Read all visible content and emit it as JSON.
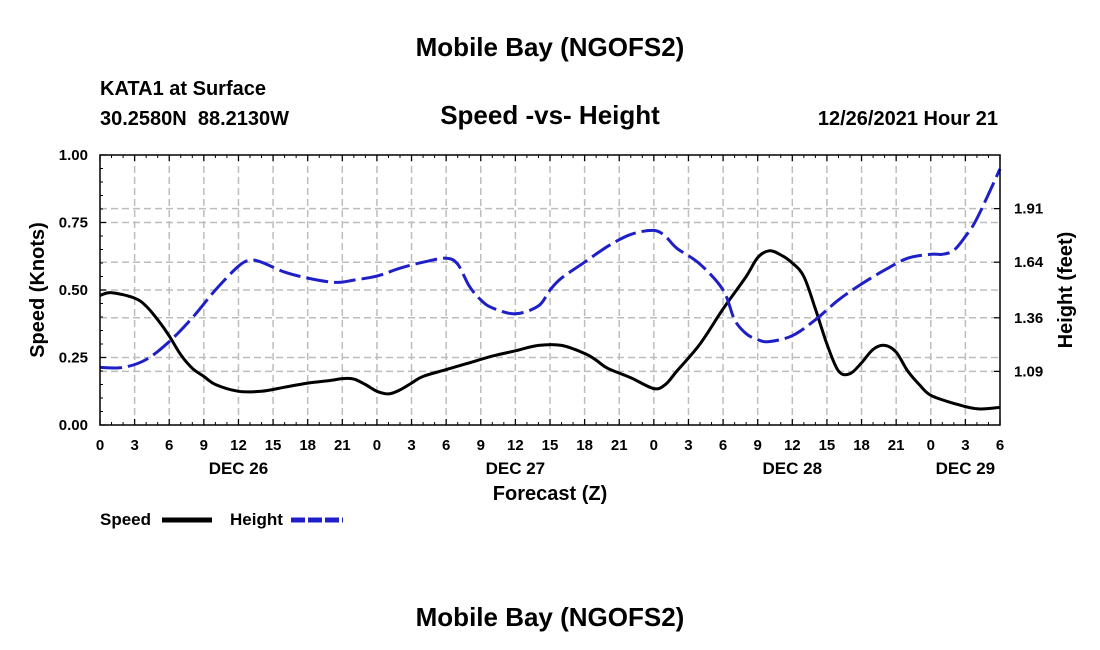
{
  "page": {
    "title_top": "Mobile Bay (NGOFS2)",
    "station": "KATA1 at Surface",
    "coords": "30.2580N  88.2130W",
    "subtitle": "Speed -vs- Height",
    "datetime": "12/26/2021 Hour 21",
    "title_bottom": "Mobile Bay (NGOFS2)"
  },
  "chart_data": {
    "type": "line",
    "title": "Speed -vs- Height",
    "xlabel": "Forecast (Z)",
    "ylabel": "Speed (Knots)",
    "y2label": "Height (feet)",
    "x_unit": "hours since DEC 26 00Z",
    "xlim": [
      0,
      78
    ],
    "ylim": [
      0,
      1.0
    ],
    "y2lim": [
      0.82,
      2.18
    ],
    "grid": true,
    "legend_position": "bottom-left",
    "x_ticks": [
      0,
      3,
      6,
      9,
      12,
      15,
      18,
      21,
      24,
      27,
      30,
      33,
      36,
      39,
      42,
      45,
      48,
      51,
      54,
      57,
      60,
      63,
      66,
      69,
      72,
      75,
      78
    ],
    "x_tick_labels": [
      "0",
      "3",
      "6",
      "9",
      "12",
      "15",
      "18",
      "21",
      "0",
      "3",
      "6",
      "9",
      "12",
      "15",
      "18",
      "21",
      "0",
      "3",
      "6",
      "9",
      "12",
      "15",
      "18",
      "21",
      "0",
      "3",
      "6"
    ],
    "date_labels": [
      {
        "x": 12,
        "label": "DEC 26"
      },
      {
        "x": 36,
        "label": "DEC 27"
      },
      {
        "x": 60,
        "label": "DEC 28"
      },
      {
        "x": 75,
        "label": "DEC 29"
      }
    ],
    "y_ticks": [
      0,
      0.25,
      0.5,
      0.75,
      1.0
    ],
    "y_tick_labels": [
      "0.00",
      "0.25",
      "0.50",
      "0.75",
      "1.00"
    ],
    "y2_ticks": [
      1.09,
      1.36,
      1.64,
      1.91
    ],
    "y2_tick_labels": [
      "1.09",
      "1.36",
      "1.64",
      "1.91"
    ],
    "series": [
      {
        "name": "Speed",
        "axis": "left",
        "color": "#000000",
        "style": "solid",
        "x": [
          0,
          1,
          3,
          4,
          5,
          6,
          7,
          8,
          9,
          10,
          12,
          14,
          16,
          18,
          20,
          21,
          22,
          23,
          24,
          25,
          26,
          27,
          28,
          30,
          32,
          34,
          36,
          38,
          40,
          42,
          43,
          44,
          46,
          48,
          49,
          50,
          52,
          54,
          56,
          57,
          58,
          59,
          60,
          61,
          62,
          63,
          64,
          65,
          66,
          67,
          68,
          69,
          70,
          71,
          72,
          74,
          76,
          78
        ],
        "y": [
          0.48,
          0.49,
          0.47,
          0.44,
          0.39,
          0.33,
          0.26,
          0.21,
          0.18,
          0.15,
          0.125,
          0.125,
          0.14,
          0.155,
          0.165,
          0.172,
          0.17,
          0.15,
          0.125,
          0.115,
          0.13,
          0.155,
          0.18,
          0.205,
          0.23,
          0.255,
          0.275,
          0.295,
          0.295,
          0.265,
          0.24,
          0.21,
          0.175,
          0.135,
          0.15,
          0.2,
          0.3,
          0.43,
          0.55,
          0.62,
          0.645,
          0.63,
          0.6,
          0.55,
          0.43,
          0.3,
          0.2,
          0.19,
          0.23,
          0.28,
          0.295,
          0.27,
          0.2,
          0.15,
          0.11,
          0.08,
          0.06,
          0.065
        ]
      },
      {
        "name": "Height",
        "axis": "right",
        "color": "#1f1fc8",
        "style": "dashed",
        "x": [
          0,
          2,
          4,
          6,
          8,
          10,
          12,
          13,
          14,
          16,
          18,
          20,
          21,
          22,
          24,
          26,
          28,
          30,
          31,
          32,
          33,
          34,
          36,
          38,
          39,
          40,
          42,
          44,
          46,
          48,
          49,
          50,
          52,
          54,
          55,
          56,
          57,
          58,
          60,
          62,
          64,
          66,
          68,
          70,
          72,
          73,
          74,
          75,
          76,
          78
        ],
        "y": [
          1.11,
          1.11,
          1.15,
          1.24,
          1.36,
          1.5,
          1.62,
          1.65,
          1.64,
          1.59,
          1.56,
          1.54,
          1.54,
          1.55,
          1.57,
          1.61,
          1.64,
          1.66,
          1.63,
          1.52,
          1.45,
          1.41,
          1.38,
          1.42,
          1.5,
          1.56,
          1.64,
          1.72,
          1.78,
          1.8,
          1.77,
          1.71,
          1.63,
          1.5,
          1.35,
          1.28,
          1.25,
          1.24,
          1.27,
          1.35,
          1.45,
          1.53,
          1.6,
          1.66,
          1.68,
          1.68,
          1.7,
          1.77,
          1.86,
          2.11
        ]
      }
    ]
  }
}
